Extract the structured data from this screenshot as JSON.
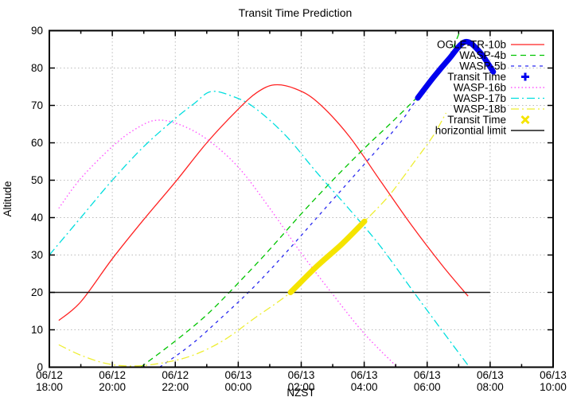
{
  "title": "Transit Time Prediction",
  "chart_data": {
    "type": "line",
    "title": "Transit Time Prediction",
    "xlabel": "NZST",
    "ylabel": "Altitude",
    "x_unit_note": "t = hours after 06/12 18:00 NZST",
    "xlim": [
      0,
      16
    ],
    "ylim": [
      0,
      90
    ],
    "grid": true,
    "legend_position": "top-right",
    "x_ticks": [
      {
        "t": 0,
        "date": "06/12",
        "time": "18:00"
      },
      {
        "t": 2,
        "date": "06/12",
        "time": "20:00"
      },
      {
        "t": 4,
        "date": "06/12",
        "time": "22:00"
      },
      {
        "t": 6,
        "date": "06/13",
        "time": "00:00"
      },
      {
        "t": 8,
        "date": "06/13",
        "time": "02:00"
      },
      {
        "t": 10,
        "date": "06/13",
        "time": "04:00"
      },
      {
        "t": 12,
        "date": "06/13",
        "time": "06:00"
      },
      {
        "t": 14,
        "date": "06/13",
        "time": "08:00"
      },
      {
        "t": 16,
        "date": "06/13",
        "time": "10:00"
      }
    ],
    "y_ticks": [
      0,
      10,
      20,
      30,
      40,
      50,
      60,
      70,
      80,
      90
    ],
    "series": [
      {
        "name": "OGLE-TR-10b",
        "color": "#ff2222",
        "dash": null,
        "width": 1.3,
        "marker": null,
        "z": 1,
        "points": [
          [
            0.3,
            12.5
          ],
          [
            1,
            17.5
          ],
          [
            2,
            29
          ],
          [
            3,
            39.5
          ],
          [
            4,
            49.5
          ],
          [
            5,
            60
          ],
          [
            6,
            69
          ],
          [
            6.6,
            73.5
          ],
          [
            7.15,
            75.5
          ],
          [
            7.8,
            74.5
          ],
          [
            8.5,
            71
          ],
          [
            9.5,
            62
          ],
          [
            10.5,
            50
          ],
          [
            11.5,
            38
          ],
          [
            12.5,
            27
          ],
          [
            13.3,
            19
          ]
        ]
      },
      {
        "name": "WASP-4b",
        "color": "#00c400",
        "dash": "7 5",
        "width": 1.3,
        "marker": null,
        "z": 2,
        "points": [
          [
            2.9,
            0
          ],
          [
            4,
            7
          ],
          [
            5,
            14
          ],
          [
            6,
            22.5
          ],
          [
            7,
            31.5
          ],
          [
            8,
            41
          ],
          [
            9,
            50
          ],
          [
            10,
            58.5
          ],
          [
            11,
            66.5
          ],
          [
            12,
            75
          ],
          [
            12.6,
            81.5
          ],
          [
            13.05,
            90
          ]
        ]
      },
      {
        "name": "WASP-5b",
        "color": "#2a2af0",
        "dash": "4 5",
        "width": 1.3,
        "marker": null,
        "z": 3,
        "points": [
          [
            3.5,
            0
          ],
          [
            4.5,
            6
          ],
          [
            5.5,
            13.5
          ],
          [
            6.5,
            21.5
          ],
          [
            7.5,
            30.5
          ],
          [
            8.5,
            40
          ],
          [
            9.5,
            49.5
          ],
          [
            10.5,
            59
          ],
          [
            11.2,
            66
          ],
          [
            11.7,
            72
          ],
          [
            12.2,
            77.5
          ],
          [
            12.7,
            82.5
          ],
          [
            13.2,
            87
          ],
          [
            13.65,
            84.5
          ],
          [
            14.1,
            79
          ]
        ]
      },
      {
        "name": "Transit Time",
        "color": "#0000ee",
        "dash": null,
        "width": 7,
        "marker": "plus",
        "z": 9,
        "points": [
          [
            11.7,
            72
          ],
          [
            12.2,
            77.5
          ],
          [
            12.7,
            82.5
          ],
          [
            13.2,
            87
          ],
          [
            13.65,
            84.5
          ],
          [
            14.1,
            79
          ]
        ]
      },
      {
        "name": "WASP-16b",
        "color": "#ff55ff",
        "dash": "1.5 3",
        "width": 1.4,
        "marker": null,
        "z": 4,
        "points": [
          [
            0.3,
            42.5
          ],
          [
            1,
            50.5
          ],
          [
            2,
            59
          ],
          [
            2.7,
            63.5
          ],
          [
            3.36,
            66
          ],
          [
            4.1,
            65
          ],
          [
            5,
            61
          ],
          [
            6,
            53.5
          ],
          [
            7,
            42.5
          ],
          [
            8,
            30.5
          ],
          [
            9,
            19.5
          ],
          [
            10,
            9
          ],
          [
            11.05,
            0
          ]
        ]
      },
      {
        "name": "WASP-17b",
        "color": "#00dede",
        "dash": "10 4 2 4",
        "width": 1.3,
        "marker": null,
        "z": 5,
        "points": [
          [
            0,
            30
          ],
          [
            1,
            40
          ],
          [
            2,
            50
          ],
          [
            3,
            59
          ],
          [
            4,
            66.5
          ],
          [
            4.6,
            70.5
          ],
          [
            5.13,
            73.7
          ],
          [
            5.8,
            72.5
          ],
          [
            6.5,
            69.5
          ],
          [
            7.5,
            62
          ],
          [
            8.5,
            52
          ],
          [
            9.5,
            42.5
          ],
          [
            10.5,
            32.5
          ],
          [
            11.58,
            20
          ],
          [
            12.5,
            9.5
          ],
          [
            13.3,
            0.5
          ]
        ]
      },
      {
        "name": "WASP-18b",
        "color": "#eeee33",
        "dash": "10 4 2 4",
        "width": 1.3,
        "marker": null,
        "z": 6,
        "points": [
          [
            0.3,
            6
          ],
          [
            1,
            3.2
          ],
          [
            1.8,
            1
          ],
          [
            2.6,
            0.3
          ],
          [
            3.5,
            1
          ],
          [
            4.5,
            3
          ],
          [
            5.5,
            7
          ],
          [
            6.5,
            13
          ],
          [
            7.66,
            20
          ],
          [
            8.5,
            27
          ],
          [
            9.3,
            33
          ],
          [
            10.01,
            39
          ],
          [
            10.8,
            46
          ],
          [
            11.6,
            55
          ],
          [
            12.2,
            62
          ],
          [
            12.6,
            68
          ]
        ]
      },
      {
        "name": "Transit Time",
        "color": "#f5e400",
        "dash": null,
        "width": 7,
        "marker": "x",
        "z": 8,
        "points": [
          [
            7.66,
            20
          ],
          [
            8.5,
            27
          ],
          [
            9.3,
            33
          ],
          [
            10.01,
            39
          ]
        ]
      },
      {
        "name": "horizontial limit",
        "color": "#1a1a1a",
        "dash": null,
        "width": 1.6,
        "marker": null,
        "z": 7,
        "points": [
          [
            0,
            20
          ],
          [
            14,
            20
          ]
        ]
      }
    ],
    "annotations": {
      "grid_color": "#bbbbbb",
      "border_color": "#000000"
    }
  }
}
